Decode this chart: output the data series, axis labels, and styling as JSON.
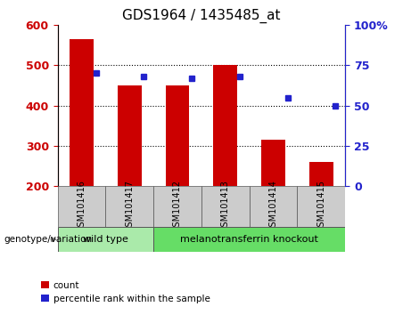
{
  "title": "GDS1964 / 1435485_at",
  "samples": [
    "GSM101416",
    "GSM101417",
    "GSM101412",
    "GSM101413",
    "GSM101414",
    "GSM101415"
  ],
  "counts": [
    565,
    450,
    450,
    500,
    315,
    260
  ],
  "percentiles": [
    70,
    68,
    67,
    68,
    55,
    50
  ],
  "ymin": 200,
  "ymax": 600,
  "yticks_left": [
    200,
    300,
    400,
    500,
    600
  ],
  "yticks_right": [
    0,
    25,
    50,
    75,
    100
  ],
  "bar_color": "#cc0000",
  "marker_color": "#2222cc",
  "label_bg_color": "#cccccc",
  "wildtype_color": "#aaeaaa",
  "knockout_color": "#66dd66",
  "wildtype_samples": [
    0,
    1
  ],
  "knockout_samples": [
    2,
    3,
    4,
    5
  ],
  "wildtype_label": "wild type",
  "knockout_label": "melanotransferrin knockout",
  "genotype_label": "genotype/variation",
  "legend_count": "count",
  "legend_percentile": "percentile rank within the sample",
  "bar_width": 0.5
}
